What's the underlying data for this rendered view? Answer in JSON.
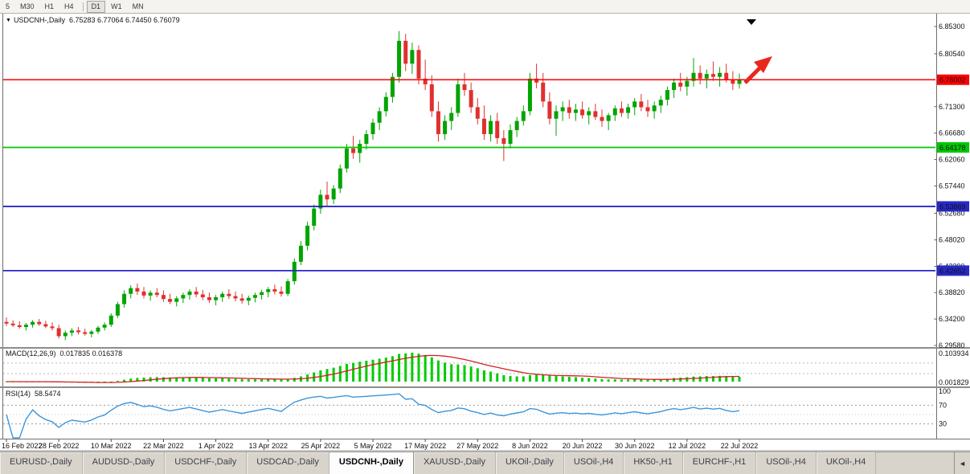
{
  "icons": {
    "chart_menu": "▼",
    "tab_nav_left": "◄"
  },
  "toolbar": {
    "periods": [
      "5",
      "M30",
      "H1",
      "H4",
      "D1",
      "W1",
      "MN"
    ],
    "active": "D1",
    "separator_after_index": 3
  },
  "chart_data": {
    "type": "candlestick",
    "title_symbol": "USDCNH-,Daily",
    "title_ohlc": "6.75283 6.77064 6.74450 6.76079",
    "last_ohlc": {
      "open": 6.75283,
      "high": 6.77064,
      "low": 6.7445,
      "close": 6.76079
    },
    "price_axis_range": [
      6.286,
      6.86
    ],
    "price_axis_labels": [
      "6.85300",
      "6.80540",
      "6.71300",
      "6.66680",
      "6.62060",
      "6.57440",
      "6.52680",
      "6.48020",
      "6.43390",
      "6.38820",
      "6.34200",
      "6.29580"
    ],
    "horizontal_lines": [
      {
        "price": 6.76002,
        "label": "6.76002",
        "color": "#FF0000"
      },
      {
        "price": 6.64178,
        "label": "6.64178",
        "color": "#00C800"
      },
      {
        "price": 6.53869,
        "label": "6.53869",
        "color": "#2828C8"
      },
      {
        "price": 6.42652,
        "label": "6.42652",
        "color": "#2828C8"
      }
    ],
    "candle_up_color": "#00A400",
    "candle_down_color": "#E03030",
    "x_ticks": [
      {
        "i": 0,
        "label": "16 Feb 2022"
      },
      {
        "i": 8,
        "label": "28 Feb 2022"
      },
      {
        "i": 16,
        "label": "10 Mar 2022"
      },
      {
        "i": 24,
        "label": "22 Mar 2022"
      },
      {
        "i": 32,
        "label": "1 Apr 2022"
      },
      {
        "i": 40,
        "label": "13 Apr 2022"
      },
      {
        "i": 48,
        "label": "25 Apr 2022"
      },
      {
        "i": 56,
        "label": "5 May 2022"
      },
      {
        "i": 64,
        "label": "17 May 2022"
      },
      {
        "i": 72,
        "label": "27 May 2022"
      },
      {
        "i": 80,
        "label": "8 Jun 2022"
      },
      {
        "i": 88,
        "label": "20 Jun 2022"
      },
      {
        "i": 96,
        "label": "30 Jun 2022"
      },
      {
        "i": 104,
        "label": "12 Jul 2022"
      },
      {
        "i": 112,
        "label": "22 Jul 2022"
      }
    ],
    "candles": [
      [
        6.337,
        6.345,
        6.33,
        6.334
      ],
      [
        6.334,
        6.34,
        6.328,
        6.331
      ],
      [
        6.331,
        6.338,
        6.325,
        6.328
      ],
      [
        6.328,
        6.335,
        6.322,
        6.332
      ],
      [
        6.332,
        6.34,
        6.327,
        6.337
      ],
      [
        6.337,
        6.342,
        6.33,
        6.333
      ],
      [
        6.333,
        6.339,
        6.326,
        6.329
      ],
      [
        6.329,
        6.336,
        6.322,
        6.326
      ],
      [
        6.326,
        6.332,
        6.308,
        6.312
      ],
      [
        6.312,
        6.322,
        6.305,
        6.318
      ],
      [
        6.318,
        6.326,
        6.312,
        6.322
      ],
      [
        6.322,
        6.328,
        6.315,
        6.319
      ],
      [
        6.319,
        6.325,
        6.313,
        6.316
      ],
      [
        6.316,
        6.323,
        6.31,
        6.32
      ],
      [
        6.32,
        6.33,
        6.316,
        6.327
      ],
      [
        6.327,
        6.336,
        6.322,
        6.332
      ],
      [
        6.332,
        6.352,
        6.328,
        6.348
      ],
      [
        6.348,
        6.372,
        6.344,
        6.368
      ],
      [
        6.368,
        6.392,
        6.362,
        6.386
      ],
      [
        6.386,
        6.401,
        6.378,
        6.396
      ],
      [
        6.396,
        6.404,
        6.384,
        6.39
      ],
      [
        6.39,
        6.398,
        6.378,
        6.383
      ],
      [
        6.383,
        6.392,
        6.374,
        6.388
      ],
      [
        6.388,
        6.396,
        6.38,
        6.384
      ],
      [
        6.384,
        6.392,
        6.372,
        6.377
      ],
      [
        6.377,
        6.386,
        6.368,
        6.372
      ],
      [
        6.372,
        6.382,
        6.364,
        6.378
      ],
      [
        6.378,
        6.388,
        6.37,
        6.384
      ],
      [
        6.384,
        6.394,
        6.376,
        6.39
      ],
      [
        6.39,
        6.398,
        6.38,
        6.385
      ],
      [
        6.385,
        6.393,
        6.375,
        6.38
      ],
      [
        6.38,
        6.388,
        6.37,
        6.375
      ],
      [
        6.375,
        6.384,
        6.366,
        6.38
      ],
      [
        6.38,
        6.39,
        6.372,
        6.386
      ],
      [
        6.386,
        6.394,
        6.377,
        6.382
      ],
      [
        6.382,
        6.39,
        6.373,
        6.378
      ],
      [
        6.378,
        6.386,
        6.369,
        6.374
      ],
      [
        6.374,
        6.383,
        6.366,
        6.379
      ],
      [
        6.379,
        6.388,
        6.371,
        6.384
      ],
      [
        6.384,
        6.393,
        6.376,
        6.389
      ],
      [
        6.389,
        6.398,
        6.38,
        6.394
      ],
      [
        6.394,
        6.402,
        6.385,
        6.39
      ],
      [
        6.39,
        6.399,
        6.381,
        6.386
      ],
      [
        6.386,
        6.412,
        6.382,
        6.408
      ],
      [
        6.408,
        6.448,
        6.402,
        6.442
      ],
      [
        6.442,
        6.478,
        6.436,
        6.47
      ],
      [
        6.47,
        6.512,
        6.462,
        6.505
      ],
      [
        6.505,
        6.542,
        6.497,
        6.535
      ],
      [
        6.535,
        6.568,
        6.526,
        6.559
      ],
      [
        6.559,
        6.582,
        6.54,
        6.551
      ],
      [
        6.551,
        6.576,
        6.543,
        6.57
      ],
      [
        6.57,
        6.612,
        6.562,
        6.605
      ],
      [
        6.605,
        6.648,
        6.598,
        6.64
      ],
      [
        6.64,
        6.662,
        6.622,
        6.632
      ],
      [
        6.632,
        6.655,
        6.615,
        6.648
      ],
      [
        6.648,
        6.672,
        6.638,
        6.665
      ],
      [
        6.665,
        6.692,
        6.655,
        6.685
      ],
      [
        6.685,
        6.712,
        6.672,
        6.705
      ],
      [
        6.705,
        6.738,
        6.696,
        6.73
      ],
      [
        6.73,
        6.772,
        6.72,
        6.765
      ],
      [
        6.765,
        6.845,
        6.755,
        6.828
      ],
      [
        6.828,
        6.84,
        6.775,
        6.788
      ],
      [
        6.788,
        6.825,
        6.77,
        6.812
      ],
      [
        6.812,
        6.82,
        6.752,
        6.762
      ],
      [
        6.762,
        6.795,
        6.742,
        6.752
      ],
      [
        6.752,
        6.768,
        6.695,
        6.705
      ],
      [
        6.705,
        6.722,
        6.652,
        6.665
      ],
      [
        6.665,
        6.698,
        6.655,
        6.688
      ],
      [
        6.688,
        6.712,
        6.672,
        6.702
      ],
      [
        6.702,
        6.762,
        6.695,
        6.752
      ],
      [
        6.752,
        6.772,
        6.732,
        6.742
      ],
      [
        6.742,
        6.755,
        6.702,
        6.712
      ],
      [
        6.712,
        6.728,
        6.682,
        6.692
      ],
      [
        6.692,
        6.715,
        6.655,
        6.665
      ],
      [
        6.665,
        6.698,
        6.652,
        6.688
      ],
      [
        6.688,
        6.702,
        6.648,
        6.658
      ],
      [
        6.658,
        6.672,
        6.618,
        6.648
      ],
      [
        6.648,
        6.682,
        6.64,
        6.672
      ],
      [
        6.672,
        6.695,
        6.66,
        6.688
      ],
      [
        6.688,
        6.715,
        6.68,
        6.705
      ],
      [
        6.705,
        6.772,
        6.698,
        6.762
      ],
      [
        6.762,
        6.788,
        6.745,
        6.755
      ],
      [
        6.755,
        6.772,
        6.712,
        6.722
      ],
      [
        6.722,
        6.738,
        6.682,
        6.692
      ],
      [
        6.692,
        6.715,
        6.662,
        6.705
      ],
      [
        6.705,
        6.722,
        6.688,
        6.712
      ],
      [
        6.712,
        6.725,
        6.692,
        6.702
      ],
      [
        6.702,
        6.718,
        6.688,
        6.708
      ],
      [
        6.708,
        6.722,
        6.692,
        6.698
      ],
      [
        6.698,
        6.712,
        6.682,
        6.705
      ],
      [
        6.705,
        6.718,
        6.69,
        6.695
      ],
      [
        6.695,
        6.708,
        6.678,
        6.688
      ],
      [
        6.688,
        6.702,
        6.672,
        6.698
      ],
      [
        6.698,
        6.715,
        6.688,
        6.71
      ],
      [
        6.71,
        6.722,
        6.695,
        6.702
      ],
      [
        6.702,
        6.718,
        6.692,
        6.712
      ],
      [
        6.712,
        6.728,
        6.698,
        6.722
      ],
      [
        6.722,
        6.735,
        6.705,
        6.712
      ],
      [
        6.712,
        6.725,
        6.695,
        6.705
      ],
      [
        6.705,
        6.722,
        6.692,
        6.715
      ],
      [
        6.715,
        6.732,
        6.702,
        6.725
      ],
      [
        6.725,
        6.748,
        6.715,
        6.742
      ],
      [
        6.742,
        6.762,
        6.728,
        6.755
      ],
      [
        6.755,
        6.772,
        6.74,
        6.748
      ],
      [
        6.748,
        6.765,
        6.732,
        6.758
      ],
      [
        6.758,
        6.798,
        6.748,
        6.772
      ],
      [
        6.772,
        6.785,
        6.752,
        6.762
      ],
      [
        6.762,
        6.778,
        6.745,
        6.77
      ],
      [
        6.77,
        6.792,
        6.758,
        6.765
      ],
      [
        6.765,
        6.782,
        6.748,
        6.772
      ],
      [
        6.772,
        6.788,
        6.755,
        6.76
      ],
      [
        6.76,
        6.775,
        6.742,
        6.753
      ],
      [
        6.75283,
        6.77064,
        6.7445,
        6.76079
      ]
    ],
    "macd": {
      "label": "MACD(12,26,9)",
      "values": "0.017835 0.016378",
      "fast": 12,
      "slow": 26,
      "signal_period": 9,
      "axis_labels": [
        "0.103934",
        "0.001829"
      ],
      "histogram_color": "#00CC00",
      "signal_color": "#D42020"
    },
    "rsi": {
      "label": "RSI(14)",
      "value": "58.5474",
      "period": 14,
      "axis_labels": [
        "100",
        "70",
        "30"
      ],
      "line_color": "#3C96DC"
    },
    "annotations": [
      {
        "type": "up-arrow",
        "color": "#E8281E"
      },
      {
        "type": "down-triangle",
        "color": "#000000"
      }
    ]
  },
  "tabs": {
    "items": [
      "EURUSD-,Daily",
      "AUDUSD-,Daily",
      "USDCHF-,Daily",
      "USDCAD-,Daily",
      "USDCNH-,Daily",
      "XAUUSD-,Daily",
      "UKOil-,Daily",
      "USOil-,H4",
      "HK50-,H1",
      "EURCHF-,H1",
      "USOil-,H4",
      "UKOil-,H4"
    ],
    "active_index": 4
  }
}
